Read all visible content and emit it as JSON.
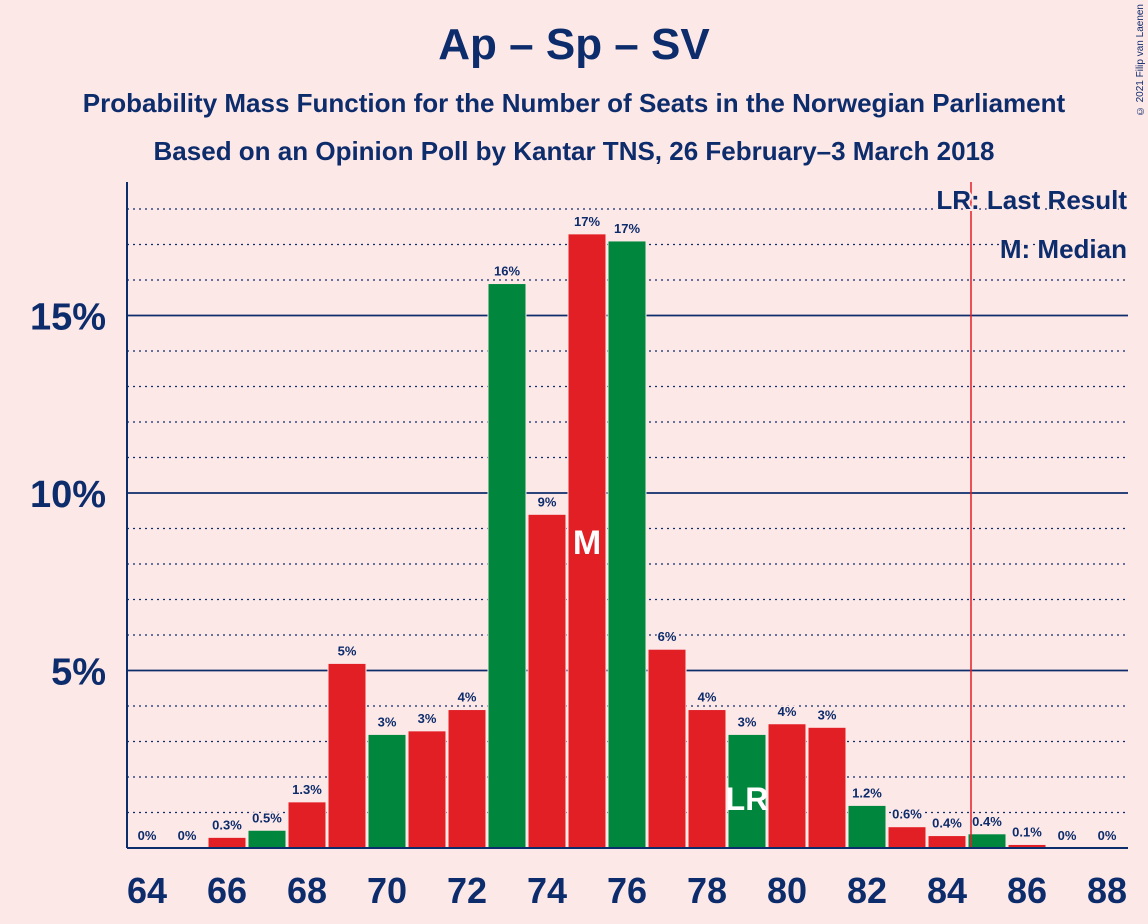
{
  "header": {
    "title": "Ap – Sp – SV",
    "subtitle1": "Probability Mass Function for the Number of Seats in the Norwegian Parliament",
    "subtitle2": "Based on an Opinion Poll by Kantar TNS, 26 February–3 March 2018",
    "copyright": "© 2021 Filip van Laenen"
  },
  "chart_data": {
    "type": "bar",
    "title": "Ap – Sp – SV",
    "subtitle": "Probability Mass Function for the Number of Seats in the Norwegian Parliament",
    "xlabel": "",
    "ylabel": "",
    "categories": [
      64,
      65,
      66,
      67,
      68,
      69,
      70,
      71,
      72,
      73,
      74,
      75,
      76,
      77,
      78,
      79,
      80,
      81,
      82,
      83,
      84,
      85,
      86,
      87,
      88
    ],
    "values": [
      0,
      0,
      0.3,
      0.5,
      1.3,
      5.2,
      3.2,
      3.3,
      3.9,
      15.9,
      9.4,
      17.3,
      17.1,
      5.6,
      3.9,
      3.2,
      3.5,
      3.4,
      1.2,
      0.6,
      0.35,
      0.4,
      0.1,
      0,
      0
    ],
    "data_labels": [
      "0%",
      "0%",
      "0.3%",
      "0.5%",
      "1.3%",
      "5%",
      "3%",
      "3%",
      "4%",
      "16%",
      "9%",
      "17%",
      "17%",
      "6%",
      "4%",
      "3%",
      "4%",
      "3%",
      "1.2%",
      "0.6%",
      "0.4%",
      "0.4%",
      "0.1%",
      "0%",
      "0%"
    ],
    "bar_colors": [
      "#E31F26",
      "#E31F26",
      "#E31F26",
      "#00873D",
      "#E31F26",
      "#E31F26",
      "#00873D",
      "#E31F26",
      "#E31F26",
      "#00873D",
      "#E31F26",
      "#E31F26",
      "#00873D",
      "#E31F26",
      "#E31F26",
      "#00873D",
      "#E31F26",
      "#E31F26",
      "#00873D",
      "#E31F26",
      "#E31F26",
      "#00873D",
      "#E31F26",
      "#E31F26",
      "#E31F26"
    ],
    "x_tick_labels": [
      "64",
      "66",
      "68",
      "70",
      "72",
      "74",
      "76",
      "78",
      "80",
      "82",
      "84",
      "86",
      "88"
    ],
    "y_tick_labels": [
      "5%",
      "10%",
      "15%"
    ],
    "y_ticks": [
      5,
      10,
      15
    ],
    "ylim": [
      0,
      18.8
    ],
    "grid": true,
    "median": 75,
    "median_marker": "M",
    "last_result": 79,
    "last_result_marker": "LR",
    "last_result_line_x": 84.6,
    "legend": {
      "placement": "top-right",
      "lr_text": "LR: Last Result",
      "m_text": "M: Median"
    },
    "colors": {
      "red": "#E31F26",
      "green": "#00873D",
      "navy": "#0D2C6B",
      "lr_line": "#E31F26",
      "background": "#FDE8E8"
    }
  }
}
